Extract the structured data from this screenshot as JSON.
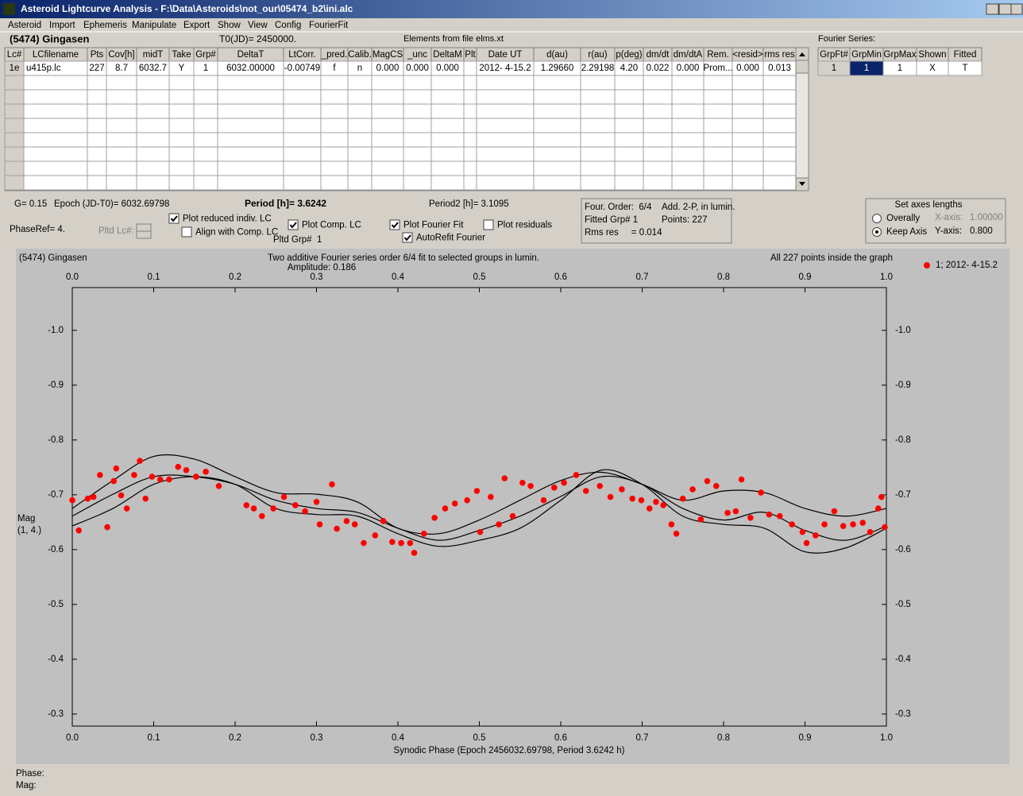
{
  "window": {
    "title": "Asteroid Lightcurve Analysis - F:\\Data\\Asteroids\\not_our\\05474_b2\\ini.alc",
    "menu": [
      "Asteroid",
      "Import",
      "Ephemeris",
      "Manipulate",
      "Export",
      "Show",
      "View",
      "Config",
      "FourierFit"
    ]
  },
  "header": {
    "asteroid": "(5474) Gingasen",
    "t0": "T0(JD)= 2450000.",
    "elements": "Elements from file elms.xt",
    "fourier_label": "Fourier Series:"
  },
  "lc_table": {
    "columns": [
      "Lc#",
      "LCfilename",
      "Pts",
      "Cov[h]",
      "midT",
      "Take",
      "Grp#",
      "DeltaT",
      "LtCorr.",
      "_pred.",
      "Calib.",
      "MagCS",
      "_unc",
      "DeltaM",
      "Plt",
      "Date UT",
      "d(au)",
      "r(au)",
      "p(deg)",
      "dm/dt",
      "dm/dtA",
      "Rem.",
      "<resid>",
      "rms res"
    ],
    "rows": [
      [
        "1e",
        "u415p.lc",
        "227",
        "8.7",
        "6032.7",
        "Y",
        "1",
        "6032.00000",
        "-0.00749",
        "f",
        "n",
        "0.000",
        "0.000",
        "0.000",
        null,
        "2012- 4-15.2",
        "1.29660",
        "2.29198",
        "4.20",
        "0.022",
        "0.000",
        "Prom...",
        "0.000",
        "0.013"
      ]
    ]
  },
  "fourier_table": {
    "columns": [
      "GrpFt#",
      "GrpMin",
      "GrpMax",
      "Shown",
      "Fitted"
    ],
    "rows": [
      [
        "1",
        "1",
        "1",
        "X",
        "T"
      ]
    ]
  },
  "info": {
    "g": "G= 0.15",
    "epoch": "Epoch (JD-T0)= 6032.69798",
    "period": "Period [h]= 3.6242",
    "period2": "Period2 [h]= 3.1095",
    "phase_ref": "PhaseRef= 4.",
    "pltd_lc": "Pltd Lc#:",
    "pltd_grp": "Pltd Grp#  1"
  },
  "checkboxes": [
    {
      "label": "Plot reduced indiv. LC",
      "checked": true
    },
    {
      "label": "Align with Comp. LC",
      "checked": false
    },
    {
      "label": "Plot Comp. LC",
      "checked": true
    },
    {
      "label": "Plot Fourier Fit",
      "checked": true
    },
    {
      "label": "AutoRefit Fourier",
      "checked": true
    },
    {
      "label": "Plot residuals",
      "checked": false
    }
  ],
  "fit_box": [
    "Four. Order:  6/4",
    "Add. 2-P, in lumin.",
    "Fitted Grp# 1",
    "Points: 227",
    "Rms res     = 0.014"
  ],
  "axes_box": {
    "title": "Set axes lengths",
    "radios": [
      {
        "label": "Overally",
        "checked": false
      },
      {
        "label": "Keep Axis",
        "checked": true
      }
    ],
    "x_label": "X-axis:",
    "x_value": "1.00000",
    "y_label": "Y-axis:",
    "y_value": "0.800"
  },
  "chart_data": {
    "type": "scatter",
    "title": "Two additive Fourier series order 6/4 fit to selected groups in lumin.",
    "subtitle": "Amplitude: 0.186",
    "annotations": [
      "(5474) Gingasen",
      "All 227 points inside the graph"
    ],
    "xlabel": "Synodic Phase (Epoch 2456032.69798, Period 3.6242 h)",
    "ylabel": [
      "Mag",
      "(1, 4.)"
    ],
    "xlim": [
      0,
      1
    ],
    "ylim": [
      -0.278,
      -1.078
    ],
    "xticks": [
      {
        "value": 0,
        "label": "0.0"
      },
      0.1,
      0.2,
      0.3,
      0.4,
      0.5,
      0.6,
      0.7,
      0.8,
      0.9,
      {
        "value": 1,
        "label": "1.0"
      }
    ],
    "yticks": [
      {
        "value": -1,
        "label": "-1.0"
      },
      -0.9,
      -0.8,
      -0.7,
      -0.6,
      -0.5,
      -0.4,
      -0.3
    ],
    "series": [
      {
        "name": "1; 2012- 4-15.2",
        "color": "#ff0000",
        "x": [
          0.0,
          0.008,
          0.019,
          0.026,
          0.034,
          0.043,
          0.051,
          0.054,
          0.06,
          0.067,
          0.076,
          0.083,
          0.09,
          0.098,
          0.108,
          0.119,
          0.13,
          0.14,
          0.152,
          0.164,
          0.18,
          0.214,
          0.223,
          0.233,
          0.247,
          0.26,
          0.274,
          0.286,
          0.3,
          0.304,
          0.319,
          0.325,
          0.337,
          0.347,
          0.358,
          0.372,
          0.382,
          0.393,
          0.404,
          0.415,
          0.42,
          0.432,
          0.445,
          0.458,
          0.47,
          0.485,
          0.497,
          0.501,
          0.514,
          0.524,
          0.531,
          0.541,
          0.553,
          0.563,
          0.579,
          0.592,
          0.604,
          0.619,
          0.631,
          0.648,
          0.661,
          0.675,
          0.688,
          0.699,
          0.709,
          0.717,
          0.726,
          0.736,
          0.742,
          0.75,
          0.762,
          0.772,
          0.78,
          0.791,
          0.805,
          0.815,
          0.822,
          0.833,
          0.846,
          0.856,
          0.869,
          0.884,
          0.897,
          0.902,
          0.913,
          0.924,
          0.936,
          0.947,
          0.959,
          0.971,
          0.98,
          0.99,
          0.994,
          0.998
        ],
        "values": [
          -0.69,
          -0.635,
          -0.693,
          -0.696,
          -0.736,
          -0.641,
          -0.725,
          -0.748,
          -0.699,
          -0.675,
          -0.736,
          -0.762,
          -0.693,
          -0.733,
          -0.728,
          -0.728,
          -0.751,
          -0.745,
          -0.733,
          -0.742,
          -0.716,
          -0.681,
          -0.675,
          -0.661,
          -0.675,
          -0.696,
          -0.681,
          -0.67,
          -0.687,
          -0.646,
          -0.719,
          -0.638,
          -0.652,
          -0.646,
          -0.612,
          -0.626,
          -0.652,
          -0.614,
          -0.612,
          -0.612,
          -0.594,
          -0.629,
          -0.658,
          -0.675,
          -0.684,
          -0.69,
          -0.707,
          -0.632,
          -0.696,
          -0.646,
          -0.73,
          -0.661,
          -0.722,
          -0.716,
          -0.69,
          -0.713,
          -0.722,
          -0.736,
          -0.707,
          -0.716,
          -0.696,
          -0.71,
          -0.693,
          -0.69,
          -0.675,
          -0.687,
          -0.681,
          -0.646,
          -0.629,
          -0.693,
          -0.71,
          -0.655,
          -0.725,
          -0.716,
          -0.667,
          -0.67,
          -0.728,
          -0.658,
          -0.704,
          -0.664,
          -0.661,
          -0.646,
          -0.632,
          -0.612,
          -0.626,
          -0.646,
          -0.67,
          -0.643,
          -0.646,
          -0.649,
          -0.632,
          -0.675,
          -0.696,
          -0.641
        ]
      }
    ],
    "fit_x": [
      0,
      0.05,
      0.1,
      0.15,
      0.2,
      0.25,
      0.3,
      0.35,
      0.4,
      0.45,
      0.5,
      0.55,
      0.6,
      0.65,
      0.7,
      0.75,
      0.8,
      0.85,
      0.9,
      0.95,
      1
    ],
    "fit_color": "#000000",
    "fits": [
      [
        -0.675,
        -0.726,
        -0.77,
        -0.765,
        -0.733,
        -0.704,
        -0.701,
        -0.687,
        -0.639,
        -0.629,
        -0.654,
        -0.69,
        -0.726,
        -0.741,
        -0.719,
        -0.69,
        -0.707,
        -0.704,
        -0.675,
        -0.661,
        -0.675
      ],
      [
        -0.661,
        -0.701,
        -0.733,
        -0.733,
        -0.719,
        -0.69,
        -0.675,
        -0.668,
        -0.639,
        -0.617,
        -0.635,
        -0.661,
        -0.697,
        -0.733,
        -0.719,
        -0.675,
        -0.654,
        -0.668,
        -0.635,
        -0.617,
        -0.643
      ],
      [
        -0.643,
        -0.675,
        -0.719,
        -0.733,
        -0.719,
        -0.675,
        -0.664,
        -0.661,
        -0.629,
        -0.606,
        -0.617,
        -0.639,
        -0.69,
        -0.745,
        -0.719,
        -0.661,
        -0.646,
        -0.639,
        -0.596,
        -0.603,
        -0.639
      ]
    ]
  },
  "status": [
    "Phase:",
    "Mag:"
  ]
}
